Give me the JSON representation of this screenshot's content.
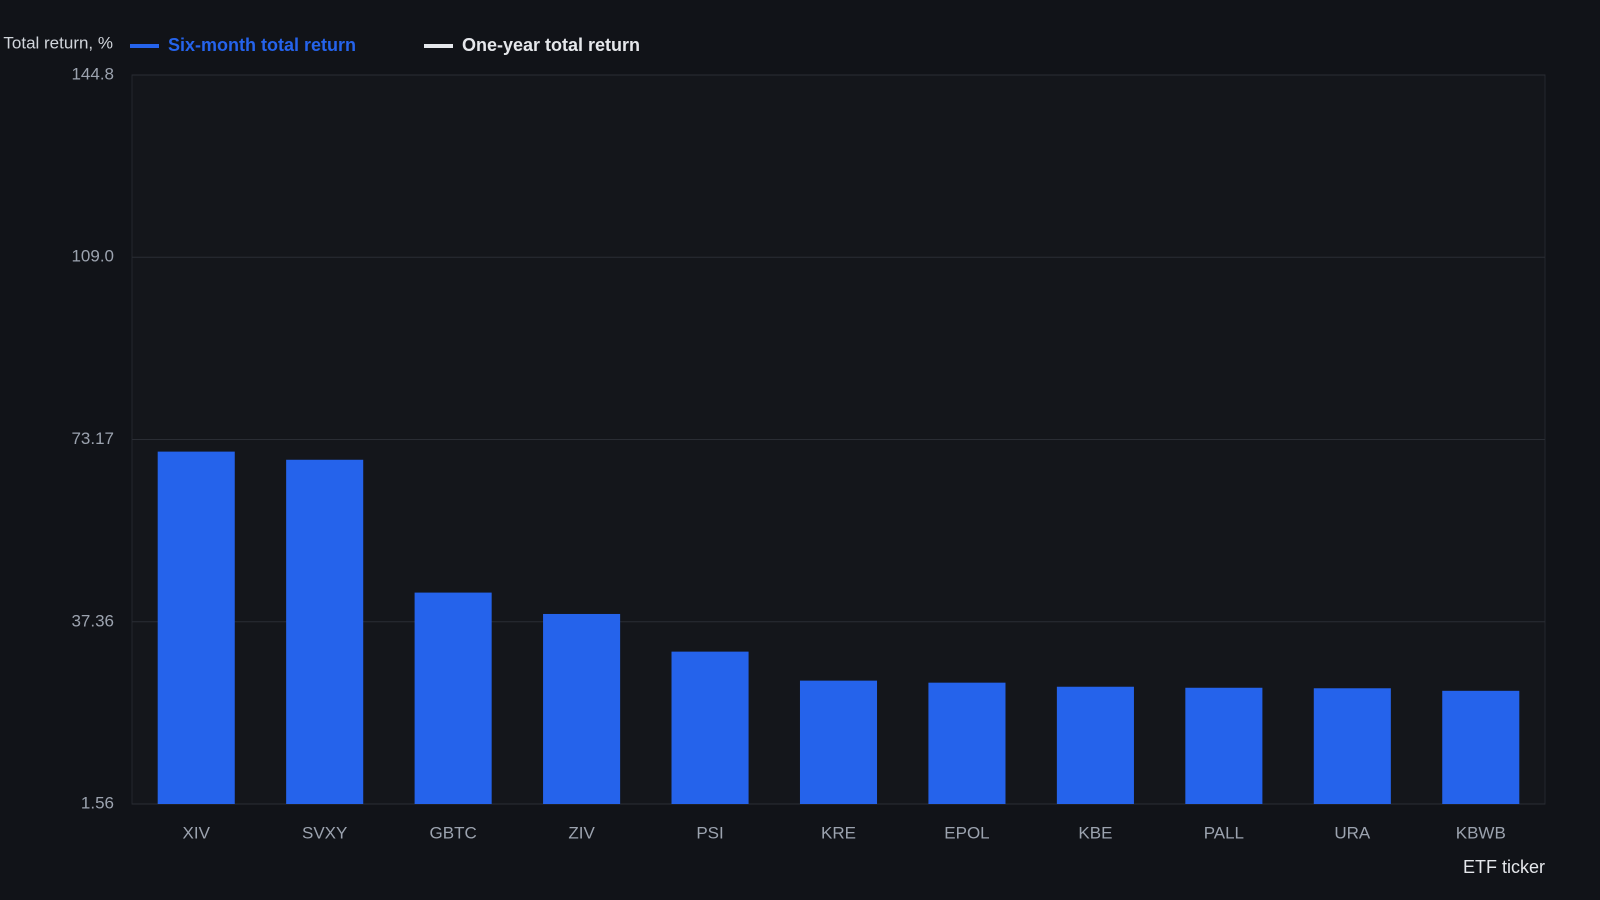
{
  "chart_data": {
    "type": "bar",
    "y_label": "Total return, %",
    "x_label": "ETF ticker",
    "categories": [
      "XIV",
      "SVXY",
      "GBTC",
      "ZIV",
      "PSI",
      "KRE",
      "EPOL",
      "KBE",
      "PALL",
      "URA",
      "KBWB"
    ],
    "series": [
      {
        "name": "Six-month total return",
        "color": "#2563eb",
        "values": [
          70.8,
          69.2,
          43.1,
          38.9,
          31.5,
          25.8,
          25.4,
          24.6,
          24.4,
          24.3,
          23.8
        ]
      },
      {
        "name": "One-year total return",
        "color": "#e5e7eb",
        "values": [
          null,
          null,
          null,
          null,
          null,
          null,
          null,
          null,
          null,
          null,
          null
        ]
      }
    ],
    "ylim": [
      1.56,
      144.8
    ],
    "yticks": [
      1.56,
      37.36,
      73.17,
      {
        "value": 109,
        "label": "109.0"
      },
      144.8
    ],
    "grid": true
  }
}
